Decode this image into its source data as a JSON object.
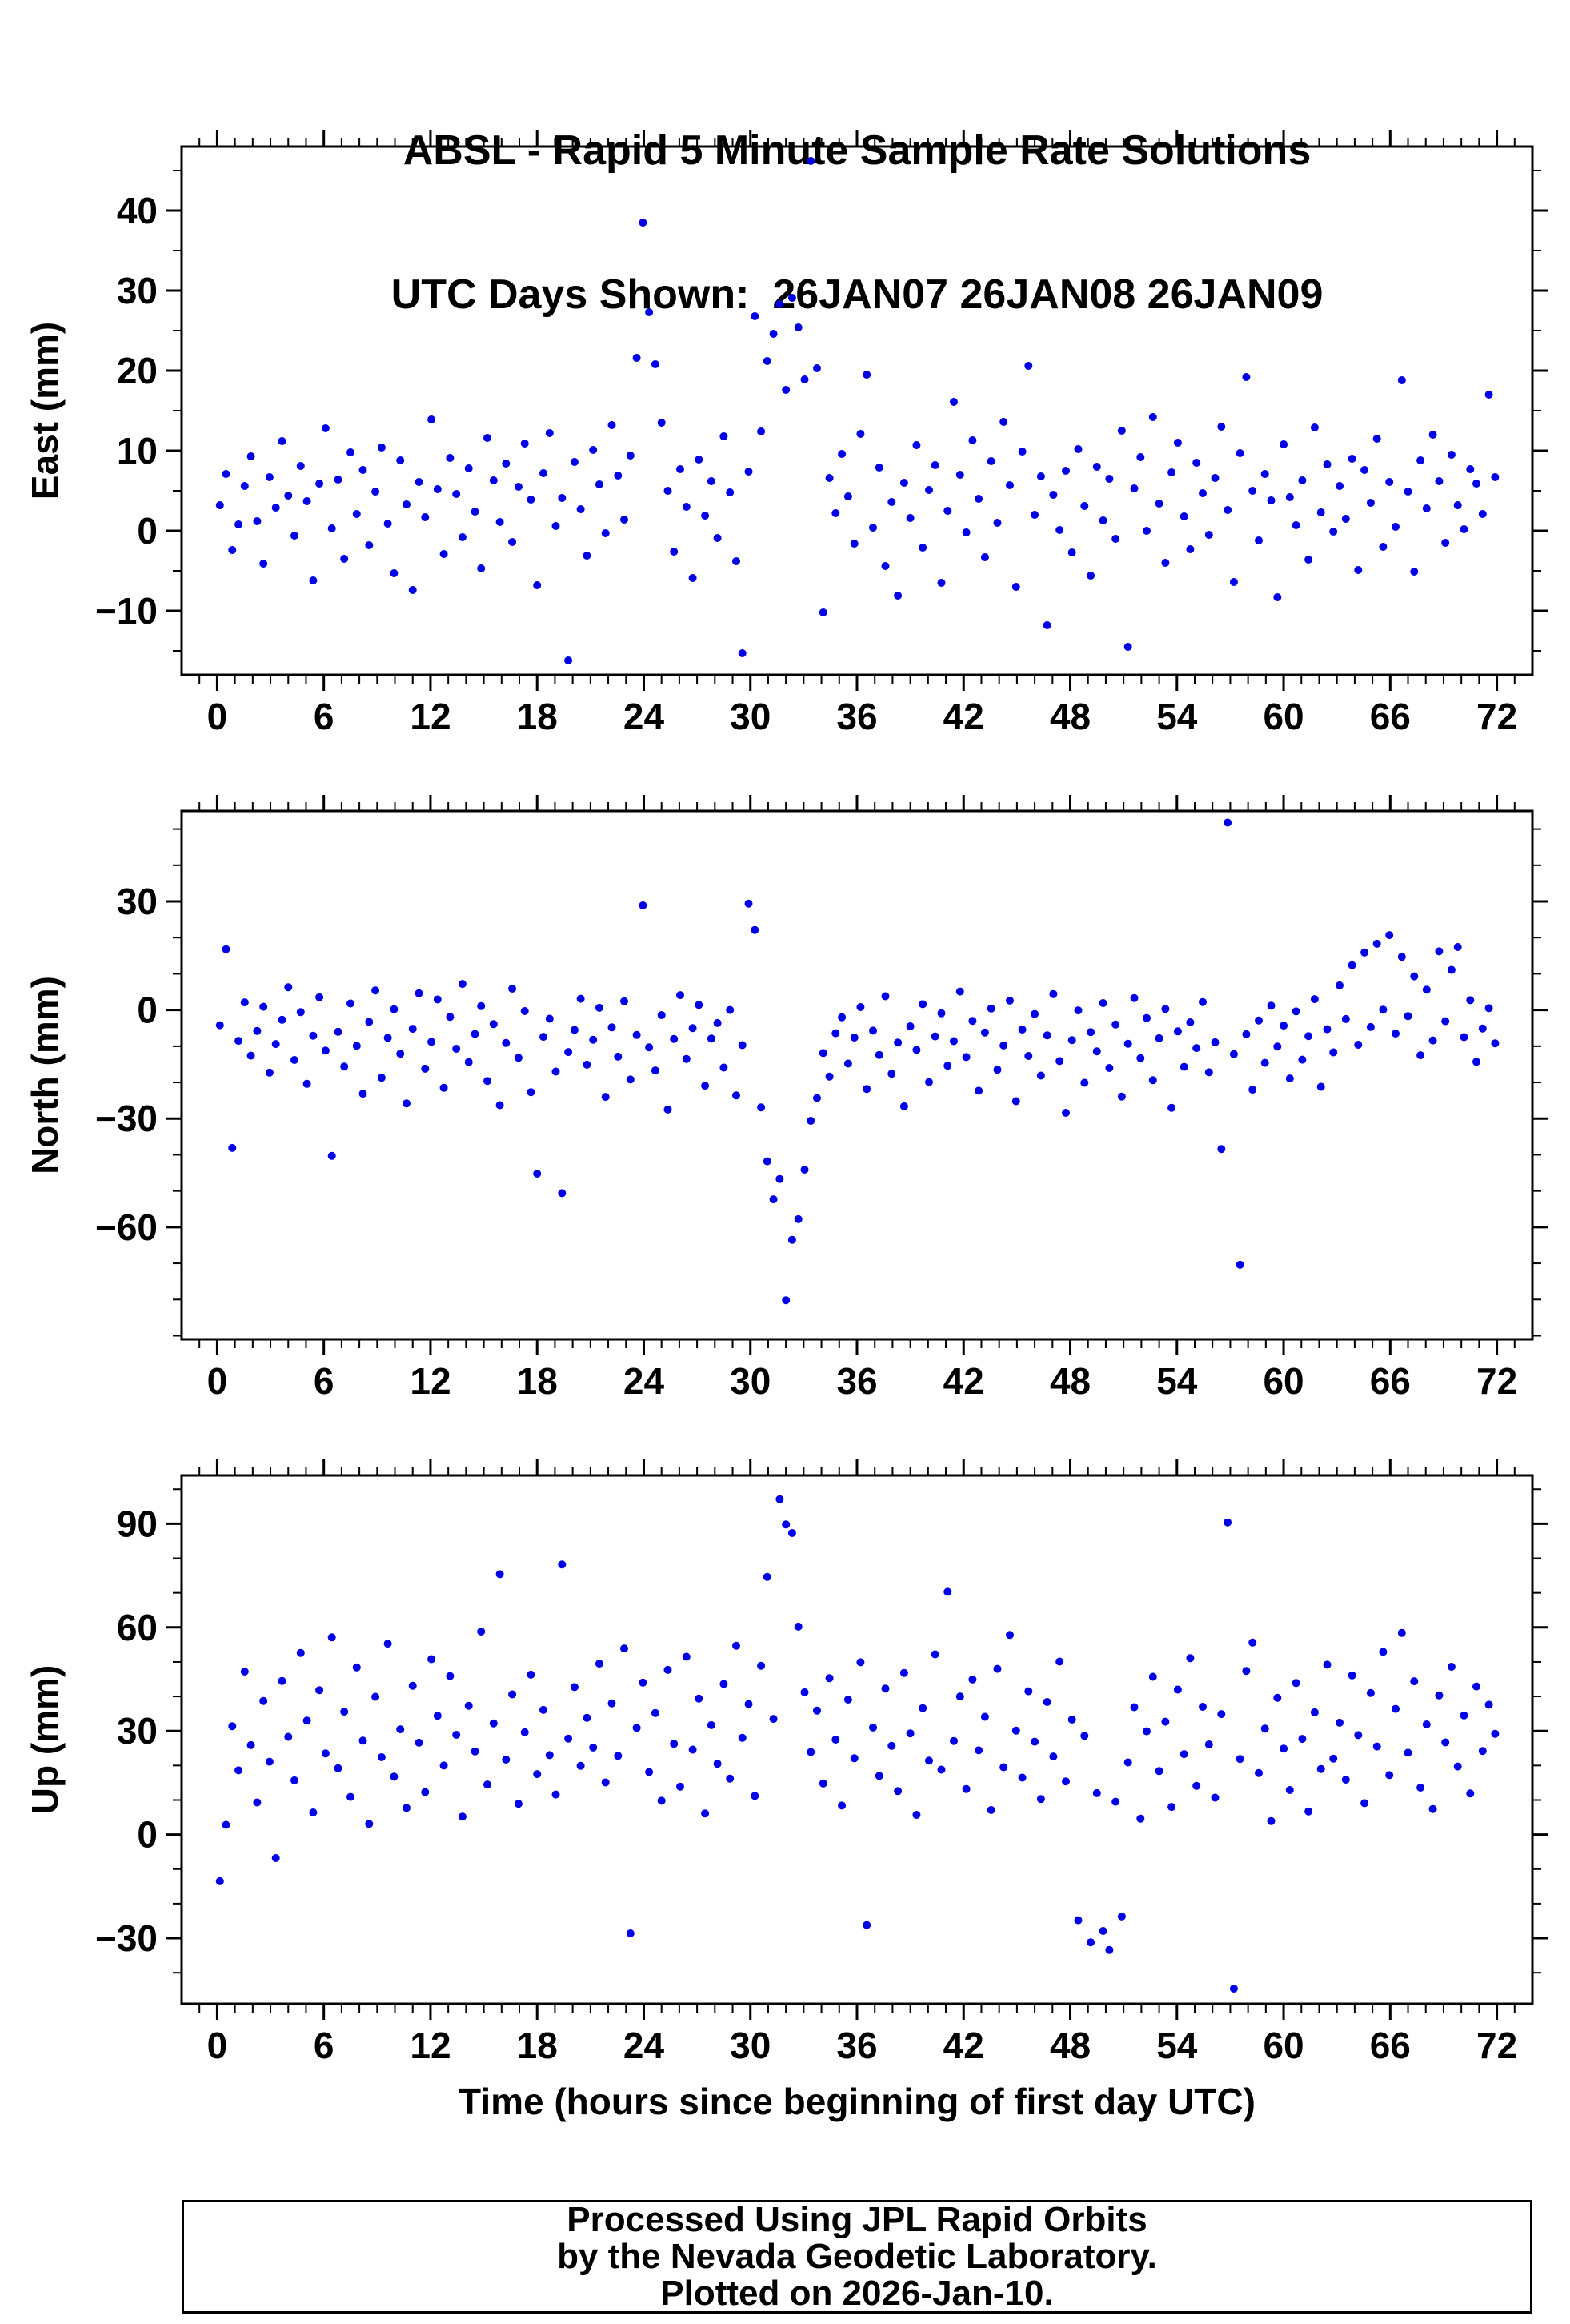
{
  "title": {
    "line1": "ABSL - Rapid 5 Minute Sample Rate Solutions",
    "line2": "UTC Days Shown:  26JAN07 26JAN08 26JAN09"
  },
  "footer": {
    "line1": "Processed Using JPL Rapid Orbits",
    "line2": "by the Nevada Geodetic Laboratory.",
    "line3": "Plotted on 2026-Jan-10."
  },
  "chart_data": {
    "type": "scatter",
    "title": "ABSL - Rapid 5 Minute Sample Rate Solutions",
    "subtitle": "UTC Days Shown:  26JAN07 26JAN08 26JAN09",
    "xlabel": "Time (hours since beginning of first day UTC)",
    "xlim": [
      -2,
      74
    ],
    "xticks": [
      0,
      6,
      12,
      18,
      24,
      30,
      36,
      42,
      48,
      54,
      60,
      66,
      72
    ],
    "x_minor_step": 1,
    "marker_color": "#0000e6",
    "x": [
      0.15,
      0.5,
      0.85,
      1.2,
      1.55,
      1.9,
      2.25,
      2.6,
      2.95,
      3.3,
      3.65,
      4,
      4.35,
      4.7,
      5.05,
      5.4,
      5.75,
      6.1,
      6.45,
      6.8,
      7.15,
      7.5,
      7.85,
      8.2,
      8.55,
      8.9,
      9.25,
      9.6,
      9.95,
      10.3,
      10.65,
      11,
      11.35,
      11.7,
      12.05,
      12.4,
      12.75,
      13.1,
      13.45,
      13.8,
      14.15,
      14.5,
      14.85,
      15.2,
      15.55,
      15.9,
      16.25,
      16.6,
      16.95,
      17.3,
      17.65,
      18,
      18.35,
      18.7,
      19.05,
      19.4,
      19.75,
      20.1,
      20.45,
      20.8,
      21.15,
      21.5,
      21.85,
      22.2,
      22.55,
      22.9,
      23.25,
      23.6,
      23.95,
      24.3,
      24.65,
      25,
      25.35,
      25.7,
      26.05,
      26.4,
      26.75,
      27.1,
      27.45,
      27.8,
      28.15,
      28.5,
      28.85,
      29.2,
      29.55,
      29.9,
      30.25,
      30.6,
      30.95,
      31.3,
      31.65,
      32,
      32.35,
      32.7,
      33.05,
      33.4,
      33.75,
      34.1,
      34.45,
      34.8,
      35.15,
      35.5,
      35.85,
      36.2,
      36.55,
      36.9,
      37.25,
      37.6,
      37.95,
      38.3,
      38.65,
      39,
      39.35,
      39.7,
      40.05,
      40.4,
      40.75,
      41.1,
      41.45,
      41.8,
      42.15,
      42.5,
      42.85,
      43.2,
      43.55,
      43.9,
      44.25,
      44.6,
      44.95,
      45.3,
      45.65,
      46,
      46.35,
      46.7,
      47.05,
      47.4,
      47.75,
      48.1,
      48.45,
      48.8,
      49.15,
      49.5,
      49.85,
      50.2,
      50.55,
      50.9,
      51.25,
      51.6,
      51.95,
      52.3,
      52.65,
      53,
      53.35,
      53.7,
      54.05,
      54.4,
      54.75,
      55.1,
      55.45,
      55.8,
      56.15,
      56.5,
      56.85,
      57.2,
      57.55,
      57.9,
      58.25,
      58.6,
      58.95,
      59.3,
      59.65,
      60,
      60.35,
      60.7,
      61.05,
      61.4,
      61.75,
      62.1,
      62.45,
      62.8,
      63.15,
      63.5,
      63.85,
      64.2,
      64.55,
      64.9,
      65.25,
      65.6,
      65.95,
      66.3,
      66.65,
      67,
      67.35,
      67.7,
      68.05,
      68.4,
      68.75,
      69.1,
      69.45,
      69.8,
      70.15,
      70.5,
      70.85,
      71.2,
      71.55,
      71.9
    ],
    "panels": [
      {
        "name": "east",
        "ylabel": "East (mm)",
        "ylim": [
          -18,
          48
        ],
        "yticks": [
          -10,
          0,
          10,
          20,
          30,
          40
        ],
        "y_minor_step": 5,
        "values": [
          3.2,
          7.1,
          -2.4,
          0.8,
          5.6,
          9.3,
          1.2,
          -4.1,
          6.7,
          2.9,
          11.2,
          4.4,
          -0.6,
          8.1,
          3.7,
          -6.2,
          5.9,
          12.8,
          0.3,
          6.4,
          -3.5,
          9.8,
          2.1,
          7.6,
          -1.8,
          4.9,
          10.4,
          0.9,
          -5.3,
          8.8,
          3.3,
          -7.4,
          6.1,
          1.7,
          13.9,
          5.2,
          -2.9,
          9.1,
          4.6,
          -0.8,
          7.8,
          2.4,
          -4.7,
          11.6,
          6.3,
          1.1,
          8.4,
          -1.4,
          5.5,
          10.9,
          3.9,
          -6.8,
          7.2,
          12.2,
          0.6,
          4.1,
          -16.2,
          8.6,
          2.7,
          -3.1,
          10.1,
          5.8,
          -0.3,
          13.2,
          6.9,
          1.4,
          9.4,
          21.6,
          38.5,
          27.3,
          20.8,
          13.5,
          5,
          -2.6,
          7.7,
          3,
          -5.9,
          8.9,
          1.9,
          6.2,
          -0.9,
          11.8,
          4.8,
          -3.8,
          -15.3,
          7.4,
          26.8,
          12.4,
          21.2,
          24.6,
          28.3,
          17.6,
          29.1,
          25.4,
          18.9,
          46.2,
          20.3,
          -10.2,
          6.6,
          2.2,
          9.6,
          4.3,
          -1.6,
          12.1,
          19.5,
          0.4,
          7.9,
          -4.4,
          3.6,
          -8.1,
          6,
          1.6,
          10.7,
          -2.1,
          5.1,
          8.2,
          -6.5,
          2.5,
          16.1,
          7,
          -0.2,
          11.3,
          4,
          -3.3,
          8.7,
          1,
          13.6,
          5.7,
          -7,
          9.9,
          20.6,
          2,
          6.8,
          -11.8,
          4.5,
          0.1,
          7.5,
          -2.7,
          10.2,
          3.1,
          -5.6,
          8,
          1.3,
          6.5,
          -1,
          12.5,
          -14.5,
          5.3,
          9.2,
          0,
          14.2,
          3.4,
          -4,
          7.3,
          11,
          1.8,
          -2.3,
          8.5,
          4.7,
          -0.5,
          6.6,
          13,
          2.6,
          -6.4,
          9.7,
          19.2,
          5,
          -1.2,
          7.1,
          3.8,
          -8.3,
          10.8,
          4.2,
          0.7,
          6.3,
          -3.6,
          12.9,
          2.3,
          8.3,
          -0.1,
          5.6,
          1.5,
          9,
          -4.9,
          7.6,
          3.5,
          11.5,
          -2,
          6.1,
          0.5,
          18.8,
          4.9,
          -5.1,
          8.8,
          2.8,
          12,
          6.2,
          -1.5,
          9.5,
          3.2,
          0.2,
          7.7,
          5.9,
          2.1,
          17,
          6.7
        ]
      },
      {
        "name": "north",
        "ylabel": "North (mm)",
        "ylim": [
          -91,
          55
        ],
        "yticks": [
          -60,
          -30,
          0,
          30
        ],
        "y_minor_step": 10,
        "values": [
          -4.2,
          16.8,
          -38.1,
          -8.5,
          2.1,
          -12.6,
          -5.8,
          0.9,
          -17.3,
          -9.4,
          -2.7,
          6.3,
          -13.8,
          -0.6,
          -20.4,
          -7.1,
          3.5,
          -11.2,
          -40.3,
          -6,
          -15.6,
          1.8,
          -9.9,
          -23.1,
          -3.3,
          5.4,
          -18.7,
          -7.7,
          0.2,
          -12.1,
          -25.8,
          -5.2,
          4.6,
          -16.2,
          -8.8,
          2.9,
          -21.5,
          -1.9,
          -10.7,
          7.2,
          -14.4,
          -6.6,
          1.1,
          -19.6,
          -3.9,
          -26.3,
          -9.1,
          5.9,
          -13.2,
          -0.3,
          -22.7,
          -45.2,
          -7.4,
          -2.4,
          -17,
          -50.6,
          -11.6,
          -5.5,
          3.1,
          -15.1,
          -8.2,
          0.6,
          -24,
          -4.8,
          -12.9,
          2.4,
          -19.2,
          -6.9,
          28.9,
          -10.3,
          -16.7,
          -1.4,
          -27.5,
          -8,
          4.1,
          -13.5,
          -5,
          1.4,
          -20.9,
          -7.9,
          -3.6,
          -15.9,
          0,
          -23.6,
          -9.7,
          29.4,
          22.1,
          -26.9,
          -41.8,
          -52.3,
          -46.7,
          -80.2,
          -63.5,
          -57.8,
          -44.1,
          -30.6,
          -24.3,
          -11.9,
          -18.4,
          -6.4,
          -2,
          -14.8,
          -7.6,
          0.8,
          -21.8,
          -5.7,
          -12.4,
          3.8,
          -17.6,
          -9,
          -26.6,
          -4.5,
          -11,
          1.6,
          -19.9,
          -7.3,
          -0.9,
          -15.4,
          -8.6,
          5.1,
          -13,
          -3,
          -22.3,
          -6.2,
          0.4,
          -16.5,
          -9.8,
          2.6,
          -25.2,
          -5.4,
          -12.7,
          -1.1,
          -18.1,
          -7,
          4.4,
          -14.1,
          -28.4,
          -8.3,
          -0.1,
          -20.1,
          -6.1,
          -11.4,
          1.9,
          -16,
          -4,
          -23.9,
          -9.3,
          3.3,
          -13.3,
          -2.2,
          -19.4,
          -7.8,
          0.3,
          -27,
          -5.9,
          -15.7,
          -3.4,
          -10.5,
          2.2,
          -17.2,
          -8.9,
          -38.4,
          51.8,
          -12.2,
          -70.4,
          -6.7,
          -22,
          -2.9,
          -14.6,
          1.2,
          -10.1,
          -4.3,
          -18.9,
          -0.4,
          -13.7,
          -7.2,
          3,
          -21.2,
          -5.3,
          -11.7,
          6.8,
          -2.5,
          12.4,
          -9.6,
          15.9,
          -4.7,
          18.3,
          0.1,
          20.7,
          -6.5,
          14.7,
          -1.7,
          9.3,
          -12.5,
          5.6,
          -8.4,
          16.2,
          -3.1,
          11.1,
          17.4,
          -7.5,
          2.7,
          -14.3,
          -5.1,
          0.5,
          -9.2
        ]
      },
      {
        "name": "up",
        "ylabel": "Up (mm)",
        "ylim": [
          -49,
          104
        ],
        "yticks": [
          -30,
          0,
          30,
          60,
          90
        ],
        "y_minor_step": 10,
        "values": [
          -13.5,
          2.8,
          31.4,
          18.6,
          47.2,
          25.9,
          9.3,
          38.7,
          21.1,
          -6.8,
          44.5,
          28.3,
          15.7,
          52.6,
          33,
          6.4,
          41.8,
          23.5,
          57.1,
          19.2,
          35.6,
          10.9,
          48.4,
          27.2,
          3.1,
          39.9,
          22.4,
          55.3,
          16.8,
          30.5,
          7.7,
          43.1,
          26.6,
          12.3,
          50.8,
          34.4,
          20,
          45.9,
          28.9,
          5.2,
          37.3,
          24.1,
          58.8,
          14.5,
          32.2,
          75.4,
          21.7,
          40.6,
          8.9,
          29.6,
          46.3,
          17.5,
          36.1,
          23,
          11.6,
          78.2,
          27.8,
          42.7,
          19.9,
          33.8,
          25.2,
          49.5,
          15.1,
          38,
          22.8,
          53.9,
          -28.6,
          30.9,
          44,
          18.1,
          35.2,
          9.8,
          47.7,
          26.3,
          13.9,
          51.5,
          24.6,
          39.4,
          6.1,
          31.7,
          20.5,
          43.6,
          16.2,
          54.7,
          28,
          37.8,
          11.2,
          48.9,
          74.6,
          33.5,
          97.1,
          89.8,
          87.3,
          60.2,
          41.2,
          23.9,
          35.9,
          14.8,
          45.3,
          27.5,
          8.4,
          39.1,
          22.1,
          49.9,
          -26.2,
          31,
          17,
          42.3,
          25.7,
          12.6,
          46.8,
          29.3,
          5.7,
          36.6,
          21.4,
          52.2,
          18.8,
          70.3,
          27.1,
          40,
          13.2,
          44.9,
          24.4,
          34.1,
          7.1,
          48,
          19.5,
          57.8,
          30.1,
          16.5,
          41.5,
          26.9,
          10.3,
          38.4,
          22.6,
          50.1,
          15.4,
          33.3,
          -24.8,
          28.6,
          -31.2,
          12,
          -27.9,
          -33.4,
          9.5,
          -23.7,
          20.9,
          36.9,
          4.6,
          29.9,
          45.7,
          18.4,
          32.7,
          8,
          42,
          23.3,
          51.1,
          14.1,
          37,
          26.1,
          10.7,
          34.9,
          90.4,
          -44.6,
          21.9,
          47.4,
          55.6,
          17.8,
          30.7,
          3.9,
          39.6,
          24.9,
          12.9,
          43.9,
          27.7,
          6.7,
          35.4,
          19,
          49.2,
          22,
          32.4,
          15.9,
          46.1,
          28.8,
          9.1,
          41,
          25.5,
          52.9,
          17.2,
          36.4,
          58.4,
          23.7,
          44.4,
          13.6,
          31.9,
          7.4,
          40.3,
          26.7,
          48.6,
          19.7,
          34.5,
          11.9,
          42.9,
          24.2,
          37.6,
          29.2
        ]
      }
    ]
  }
}
